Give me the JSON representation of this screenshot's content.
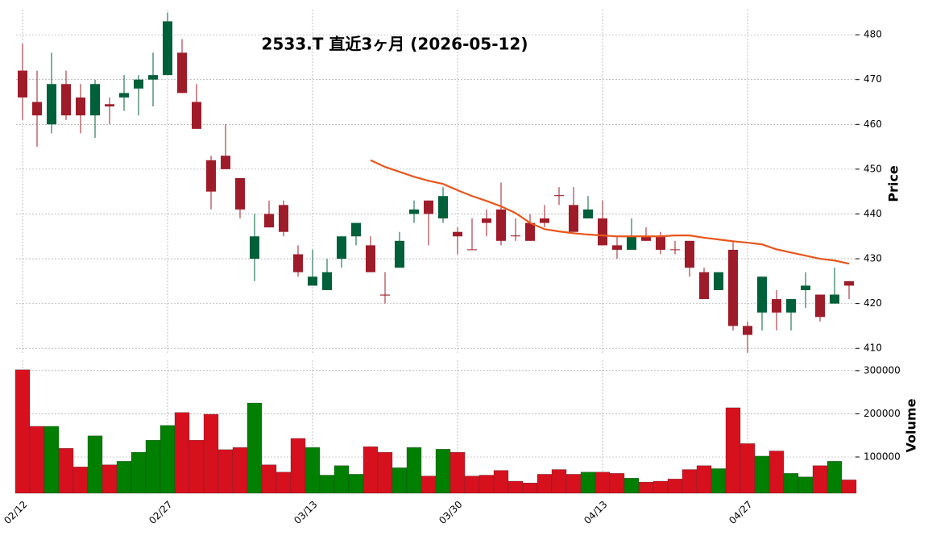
{
  "chart_data": [
    {
      "type": "candlestick",
      "title": "2533.T  直近3ヶ月  (2026-05-12)",
      "ylabel": "Price",
      "ylim": [
        408.6,
        485.6
      ],
      "yticks": [
        410,
        420,
        430,
        440,
        450,
        460,
        470,
        480
      ],
      "grid": true,
      "up_color": "#00603a",
      "down_color": "#9e1c2a",
      "open": [
        472,
        465,
        460,
        469,
        466,
        462,
        464.5,
        466,
        468,
        470,
        471,
        476,
        465,
        452,
        453,
        448,
        430,
        440,
        442,
        431,
        424,
        423,
        430,
        435,
        433,
        422,
        428,
        440,
        443,
        439,
        436,
        432.1,
        439,
        441,
        435.2,
        438,
        439,
        444.2,
        442,
        439,
        439,
        433,
        432,
        435,
        435,
        432.1,
        434,
        427,
        423,
        432,
        415,
        418,
        421,
        418,
        423,
        422,
        420,
        425
      ],
      "high": [
        478,
        472,
        476,
        472,
        469,
        470,
        466,
        471,
        471,
        476,
        485,
        479,
        469,
        453,
        460,
        448,
        440,
        443,
        443,
        433,
        432,
        430,
        435,
        438,
        435,
        427,
        436,
        443,
        443,
        446,
        437,
        439,
        441,
        447,
        439,
        440,
        442,
        446,
        446,
        444,
        443,
        435,
        439,
        437,
        436,
        434,
        434,
        428,
        427,
        434,
        416,
        426,
        423,
        421,
        427,
        422,
        428,
        425
      ],
      "low": [
        461,
        455,
        458,
        461,
        458,
        457,
        460,
        463,
        462,
        464,
        471,
        467,
        459,
        441,
        450,
        439,
        425,
        437,
        435,
        426,
        424,
        423,
        428,
        433,
        427,
        420,
        428,
        438,
        433,
        438,
        431,
        432,
        435,
        433,
        434,
        434,
        437,
        442,
        436,
        439,
        433,
        430,
        432,
        434,
        431,
        431,
        426,
        421,
        423,
        414,
        409,
        414,
        414,
        414,
        419,
        416,
        420,
        421
      ],
      "close": [
        466,
        462,
        469,
        462,
        462,
        469,
        464,
        467,
        470,
        471,
        483,
        467,
        459,
        445,
        450,
        441,
        435,
        437,
        436,
        427,
        426,
        427,
        435,
        438,
        427,
        421.8,
        434,
        441,
        440,
        444,
        435,
        432,
        438,
        434,
        435,
        434,
        438,
        444,
        436,
        441,
        433,
        432,
        435,
        434,
        432,
        432,
        428,
        421,
        427,
        415,
        413,
        426,
        418,
        421,
        424,
        417,
        422,
        424
      ],
      "ma": {
        "color": "#e8561b",
        "values": [
          null,
          null,
          null,
          null,
          null,
          null,
          null,
          null,
          null,
          null,
          null,
          null,
          null,
          null,
          null,
          null,
          null,
          null,
          null,
          null,
          null,
          null,
          null,
          null,
          452,
          450.5,
          449.4,
          448.3,
          447.4,
          446.7,
          445.3,
          444,
          442.9,
          441.7,
          440.2,
          438,
          436.6,
          436.1,
          435.7,
          435.4,
          435.2,
          435,
          435,
          435,
          435,
          435.2,
          435.2,
          434.7,
          434.3,
          433.9,
          433.6,
          433.2,
          432.1,
          431.4,
          430.7,
          430,
          429.6,
          428.9
        ]
      }
    },
    {
      "type": "bar",
      "ylabel": "Volume",
      "ylim": [
        16000,
        324000
      ],
      "yticks": [
        100000,
        200000,
        300000
      ],
      "grid": true,
      "up_color": "#007f00",
      "down_color": "#d7101e",
      "categories": [
        "02/12",
        null,
        null,
        null,
        null,
        null,
        null,
        null,
        null,
        null,
        "02/27",
        null,
        null,
        null,
        null,
        null,
        null,
        null,
        null,
        null,
        "03/13",
        null,
        null,
        null,
        null,
        null,
        null,
        null,
        null,
        null,
        "03/30",
        null,
        null,
        null,
        null,
        null,
        null,
        null,
        null,
        null,
        "04/13",
        null,
        null,
        null,
        null,
        null,
        null,
        null,
        null,
        null,
        "04/27",
        null,
        null,
        null,
        null,
        null,
        null,
        null
      ],
      "values": [
        302000,
        171000,
        171000,
        120000,
        77000,
        149000,
        82000,
        90000,
        111000,
        139000,
        173000,
        203000,
        139000,
        199000,
        117000,
        122000,
        225000,
        82000,
        65000,
        143000,
        122000,
        58000,
        80000,
        60000,
        124000,
        111000,
        75000,
        122000,
        56000,
        118000,
        111000,
        56000,
        58000,
        69000,
        44000,
        40000,
        60000,
        71000,
        60000,
        65000,
        65000,
        62000,
        51000,
        42000,
        44000,
        49000,
        71000,
        80000,
        73000,
        214000,
        131000,
        102000,
        114000,
        62000,
        54000,
        80000,
        90000,
        47000
      ]
    }
  ]
}
